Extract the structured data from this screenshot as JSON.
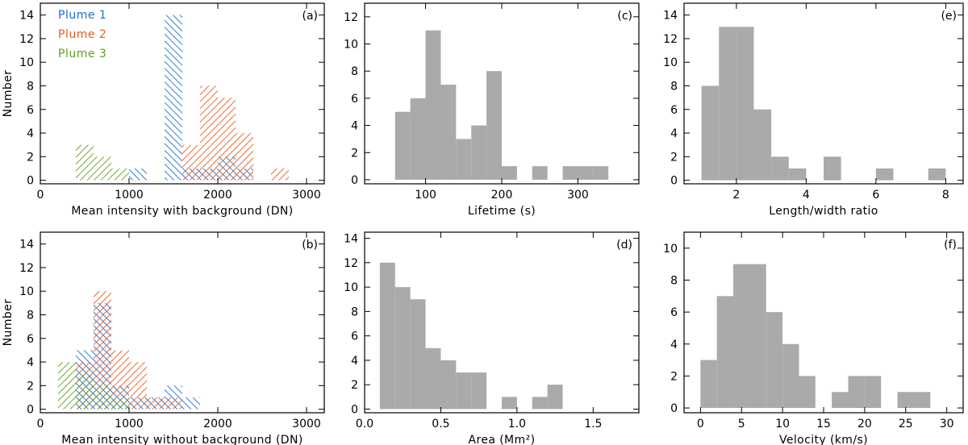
{
  "colors": {
    "plume1": "#1a6fd6",
    "plume2": "#ec5a1a",
    "plume3": "#5f9e1e",
    "gray": "#aaaaaa",
    "axis": "#000000"
  },
  "legend": [
    {
      "label": "Plume 1",
      "series": "plume1"
    },
    {
      "label": "Plume 2",
      "series": "plume2"
    },
    {
      "label": "Plume 3",
      "series": "plume3"
    }
  ],
  "chart_data": [
    {
      "panel": "a",
      "panel_label": "(a)",
      "type": "bar",
      "xlabel": "Mean intensity with background (DN)",
      "ylabel": "Number",
      "xlim": [
        0,
        3200
      ],
      "ylim": [
        -0.3,
        15
      ],
      "xticks": [
        0,
        1000,
        2000,
        3000
      ],
      "yticks": [
        0,
        2,
        4,
        6,
        8,
        10,
        12,
        14
      ],
      "bin_width": 200,
      "series": [
        {
          "name": "Plume 1",
          "color_key": "plume1",
          "bin_starts": [
            1000,
            1400,
            1600,
            1800,
            2000,
            2200
          ],
          "values": [
            1,
            14,
            1,
            1,
            2,
            1
          ]
        },
        {
          "name": "Plume 2",
          "color_key": "plume2",
          "bin_starts": [
            1600,
            1800,
            2000,
            2200,
            2600
          ],
          "values": [
            3,
            8,
            7,
            4,
            1
          ]
        },
        {
          "name": "Plume 3",
          "color_key": "plume3",
          "bin_starts": [
            400,
            600,
            800
          ],
          "values": [
            3,
            2,
            1
          ]
        }
      ]
    },
    {
      "panel": "b",
      "panel_label": "(b)",
      "type": "bar",
      "xlabel": "Mean intensity without background (DN)",
      "ylabel": "Number",
      "xlim": [
        0,
        3200
      ],
      "ylim": [
        -0.3,
        15
      ],
      "xticks": [
        0,
        1000,
        2000,
        3000
      ],
      "yticks": [
        0,
        2,
        4,
        6,
        8,
        10,
        12,
        14
      ],
      "bin_width": 200,
      "series": [
        {
          "name": "Plume 1",
          "color_key": "plume1",
          "bin_starts": [
            400,
            600,
            800,
            1000,
            1200,
            1400,
            1600
          ],
          "values": [
            5,
            9,
            2,
            1,
            1,
            2,
            1
          ]
        },
        {
          "name": "Plume 2",
          "color_key": "plume2",
          "bin_starts": [
            400,
            600,
            800,
            1000,
            1200,
            1400
          ],
          "values": [
            4,
            10,
            5,
            4,
            1,
            1
          ]
        },
        {
          "name": "Plume 3",
          "color_key": "plume3",
          "bin_starts": [
            200,
            400,
            600,
            800
          ],
          "values": [
            4,
            3,
            2,
            1
          ]
        }
      ]
    },
    {
      "panel": "c",
      "panel_label": "(c)",
      "type": "bar",
      "xlabel": "Lifetime (s)",
      "ylabel": "",
      "xlim": [
        20,
        380
      ],
      "ylim": [
        -0.3,
        13
      ],
      "xticks": [
        100,
        200,
        300
      ],
      "yticks": [
        0,
        2,
        4,
        6,
        8,
        10,
        12
      ],
      "bin_width": 20,
      "series": [
        {
          "name": "Lifetime",
          "color_key": "gray",
          "bin_starts": [
            60,
            80,
            100,
            120,
            140,
            160,
            180,
            200,
            240,
            280,
            300,
            320
          ],
          "values": [
            5,
            6,
            11,
            7,
            3,
            4,
            8,
            1,
            1,
            1,
            1,
            1
          ]
        }
      ]
    },
    {
      "panel": "d",
      "panel_label": "(d)",
      "type": "bar",
      "xlabel": "Area (Mm²)",
      "ylabel": "",
      "xlim": [
        0,
        1.8
      ],
      "ylim": [
        -0.3,
        14.5
      ],
      "xticks": [
        0.0,
        0.5,
        1.0,
        1.5
      ],
      "xtick_labels": [
        "0.0",
        "0.5",
        "1.0",
        "1.5"
      ],
      "yticks": [
        0,
        2,
        4,
        6,
        8,
        10,
        12,
        14
      ],
      "bin_width": 0.1,
      "series": [
        {
          "name": "Area",
          "color_key": "gray",
          "bin_starts": [
            0.1,
            0.2,
            0.3,
            0.4,
            0.5,
            0.6,
            0.7,
            0.9,
            1.1,
            1.2
          ],
          "values": [
            12,
            10,
            9,
            5,
            4,
            3,
            3,
            1,
            1,
            2
          ]
        }
      ]
    },
    {
      "panel": "e",
      "panel_label": "(e)",
      "type": "bar",
      "xlabel": "Length/width ratio",
      "ylabel": "",
      "xlim": [
        0.5,
        8.5
      ],
      "ylim": [
        -0.3,
        15
      ],
      "xticks": [
        2,
        4,
        6,
        8
      ],
      "yticks": [
        0,
        2,
        4,
        6,
        8,
        10,
        12,
        14
      ],
      "bin_width": 0.5,
      "series": [
        {
          "name": "Length/width ratio",
          "color_key": "gray",
          "bin_starts": [
            1.0,
            1.5,
            2.0,
            2.5,
            3.0,
            3.5,
            4.5,
            6.0,
            7.5
          ],
          "values": [
            8,
            13,
            13,
            6,
            2,
            1,
            2,
            1,
            1
          ]
        }
      ]
    },
    {
      "panel": "f",
      "panel_label": "(f)",
      "type": "bar",
      "xlabel": "Velocity (km/s)",
      "ylabel": "",
      "xlim": [
        -2,
        32
      ],
      "ylim": [
        -0.3,
        11
      ],
      "xticks": [
        0,
        5,
        10,
        15,
        20,
        25,
        30
      ],
      "yticks": [
        0,
        2,
        4,
        6,
        8,
        10
      ],
      "bin_width": 2,
      "series": [
        {
          "name": "Velocity",
          "color_key": "gray",
          "bin_starts": [
            0,
            2,
            4,
            6,
            8,
            10,
            12,
            16,
            18,
            20,
            24,
            26
          ],
          "values": [
            3,
            7,
            9,
            9,
            6,
            4,
            2,
            1,
            2,
            2,
            1,
            1
          ]
        }
      ]
    }
  ]
}
